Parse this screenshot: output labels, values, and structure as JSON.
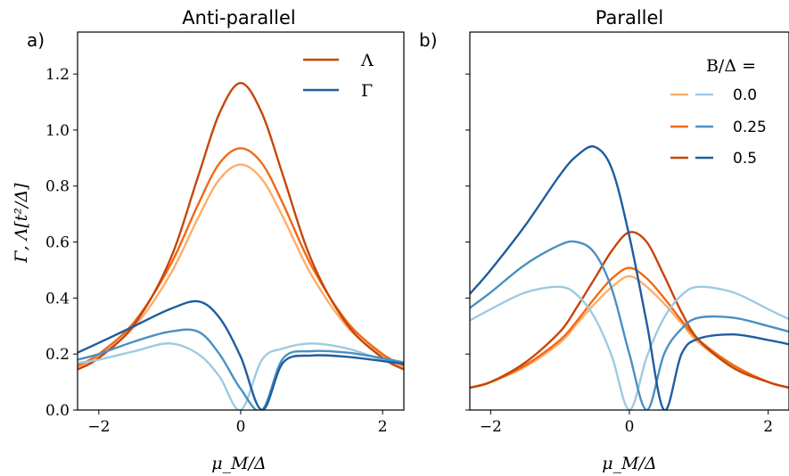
{
  "panels": [
    {
      "tag": "a)",
      "title": "Anti-parallel"
    },
    {
      "tag": "b)",
      "title": "Parallel"
    }
  ],
  "chart_data": [
    {
      "type": "line",
      "title": "Anti-parallel",
      "xlabel": "μ_M/Δ",
      "ylabel": "Γ, Λ[t²/Δ]",
      "xlim": [
        -2.3,
        2.3
      ],
      "ylim": [
        0.0,
        1.35
      ],
      "xticks": [
        "−2",
        "0",
        "2"
      ],
      "yticks": [
        "0.0",
        "0.2",
        "0.4",
        "0.6",
        "0.8",
        "1.0",
        "1.2"
      ],
      "legend": {
        "position": "top-right",
        "entries": [
          "Λ",
          "Γ"
        ]
      },
      "x": [
        -2.3,
        -2.0,
        -1.5,
        -1.0,
        -0.6,
        -0.3,
        0.0,
        0.3,
        0.6,
        1.0,
        1.5,
        2.0,
        2.3
      ],
      "series": [
        {
          "name": "Λ",
          "B": "0.0",
          "color": "#fdae6b",
          "values": [
            0.152,
            0.192,
            0.298,
            0.481,
            0.687,
            0.824,
            0.877,
            0.824,
            0.687,
            0.481,
            0.298,
            0.192,
            0.152
          ]
        },
        {
          "name": "Λ",
          "B": "0.25",
          "color": "#f16913",
          "values": [
            0.159,
            0.2,
            0.315,
            0.514,
            0.735,
            0.881,
            0.935,
            0.881,
            0.735,
            0.514,
            0.315,
            0.2,
            0.159
          ]
        },
        {
          "name": "Λ",
          "B": "0.5",
          "color": "#c6460a",
          "values": [
            0.145,
            0.186,
            0.306,
            0.534,
            0.835,
            1.06,
            1.168,
            1.06,
            0.835,
            0.534,
            0.306,
            0.186,
            0.145
          ]
        },
        {
          "name": "Γ",
          "B": "0.0",
          "color": "#9ecae1",
          "values": [
            0.168,
            0.18,
            0.21,
            0.238,
            0.2,
            0.12,
            0.0,
            0.18,
            0.22,
            0.238,
            0.22,
            0.18,
            0.168
          ]
        },
        {
          "name": "Γ",
          "B": "0.25",
          "color": "#4a90c2",
          "values": [
            0.18,
            0.2,
            0.245,
            0.28,
            0.28,
            0.2,
            0.075,
            0.0,
            0.185,
            0.21,
            0.205,
            0.185,
            0.17
          ]
        },
        {
          "name": "Γ",
          "B": "0.5",
          "color": "#1f5d9e",
          "values": [
            0.205,
            0.24,
            0.3,
            0.36,
            0.388,
            0.33,
            0.19,
            0.0,
            0.17,
            0.195,
            0.19,
            0.175,
            0.165
          ]
        }
      ]
    },
    {
      "type": "line",
      "title": "Parallel",
      "xlabel": "μ_M/Δ",
      "xlim": [
        -2.3,
        2.3
      ],
      "ylim": [
        0.0,
        1.35
      ],
      "xticks": [
        "−2",
        "0",
        "2"
      ],
      "legend": {
        "position": "top-right",
        "title": "B/Δ =",
        "entries": [
          "0.0",
          "0.25",
          "0.5"
        ]
      },
      "x": [
        -2.3,
        -2.0,
        -1.5,
        -1.0,
        -0.75,
        -0.5,
        -0.25,
        0.0,
        0.25,
        0.5,
        0.75,
        1.0,
        1.5,
        2.0,
        2.3
      ],
      "series": [
        {
          "name": "Λ",
          "B": "0.0",
          "color": "#fdae6b",
          "values": [
            0.08,
            0.1,
            0.155,
            0.24,
            0.31,
            0.38,
            0.44,
            0.478,
            0.44,
            0.38,
            0.31,
            0.24,
            0.155,
            0.1,
            0.08
          ]
        },
        {
          "name": "Λ",
          "B": "0.25",
          "color": "#f16913",
          "values": [
            0.08,
            0.1,
            0.16,
            0.25,
            0.32,
            0.4,
            0.47,
            0.508,
            0.47,
            0.4,
            0.32,
            0.25,
            0.16,
            0.1,
            0.08
          ]
        },
        {
          "name": "Λ",
          "B": "0.5",
          "color": "#c6460a",
          "values": [
            0.08,
            0.1,
            0.17,
            0.28,
            0.37,
            0.47,
            0.57,
            0.635,
            0.6,
            0.48,
            0.35,
            0.25,
            0.15,
            0.1,
            0.08
          ]
        },
        {
          "name": "Γ",
          "B": "0.0",
          "color": "#9ecae1",
          "values": [
            0.32,
            0.36,
            0.42,
            0.44,
            0.41,
            0.33,
            0.19,
            0.0,
            0.19,
            0.33,
            0.41,
            0.44,
            0.42,
            0.36,
            0.325
          ]
        },
        {
          "name": "Γ",
          "B": "0.25",
          "color": "#4a90c2",
          "values": [
            0.365,
            0.42,
            0.52,
            0.59,
            0.6,
            0.56,
            0.43,
            0.2,
            0.0,
            0.2,
            0.29,
            0.33,
            0.33,
            0.3,
            0.28
          ]
        },
        {
          "name": "Γ",
          "B": "0.5",
          "color": "#1f5d9e",
          "values": [
            0.415,
            0.5,
            0.66,
            0.84,
            0.91,
            0.94,
            0.86,
            0.62,
            0.31,
            0.0,
            0.2,
            0.255,
            0.27,
            0.25,
            0.235
          ]
        }
      ]
    }
  ]
}
